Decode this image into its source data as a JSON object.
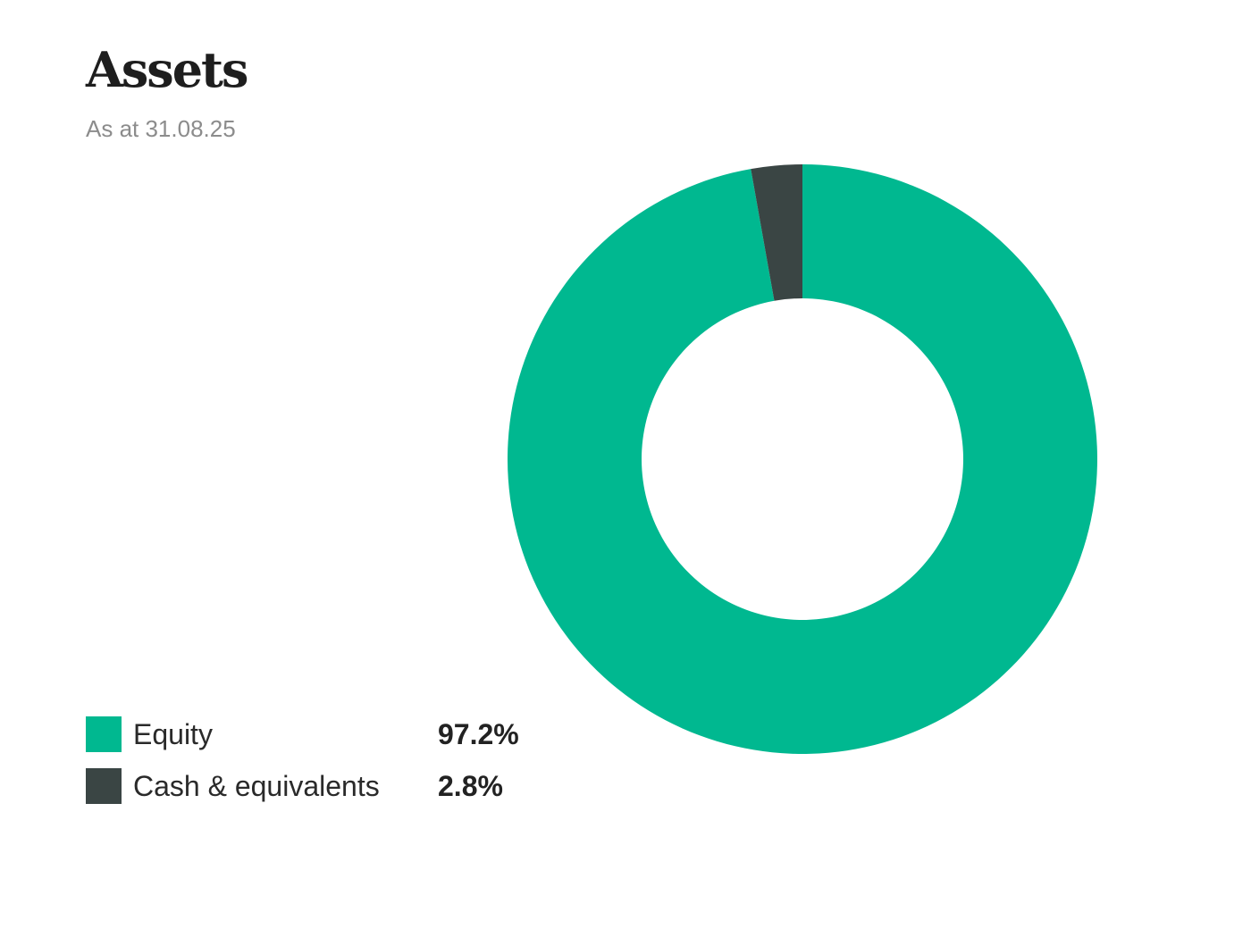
{
  "header": {
    "title": "Assets",
    "subtitle": "As at 31.08.25"
  },
  "chart_data": {
    "type": "pie",
    "variant": "donut",
    "title": "Assets",
    "subtitle": "As at 31.08.25",
    "categories": [
      "Equity",
      "Cash & equivalents"
    ],
    "values": [
      97.2,
      2.8
    ],
    "value_labels": [
      "97.2%",
      "2.8%"
    ],
    "colors": [
      "#00b890",
      "#3a4544"
    ],
    "unit": "%",
    "start": "top",
    "direction": "clockwise",
    "legend_placement": "bottom-left"
  }
}
